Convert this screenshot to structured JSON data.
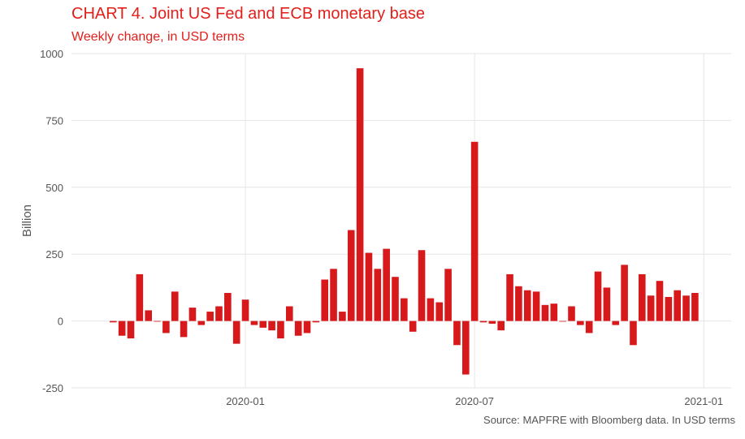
{
  "chart_data": {
    "type": "bar",
    "title": "CHART 4. Joint US Fed and ECB monetary base",
    "subtitle": "Weekly change, in USD terms",
    "ylabel": "Billion",
    "xlabel": "",
    "source": "Source: MAPFRE with Bloomberg data. In USD terms",
    "ylim": [
      -250,
      1000
    ],
    "y_ticks": [
      -250,
      0,
      250,
      500,
      750,
      1000
    ],
    "x_tick_labels": [
      "2020-01",
      "2020-07",
      "2021-01"
    ],
    "x_tick_bar_index": [
      15,
      41,
      67
    ],
    "values": [
      -5,
      -55,
      -65,
      175,
      40,
      0,
      -45,
      110,
      -60,
      50,
      -15,
      35,
      55,
      105,
      -85,
      80,
      -15,
      -25,
      -35,
      -65,
      55,
      -55,
      -45,
      -5,
      155,
      195,
      35,
      340,
      945,
      255,
      195,
      270,
      165,
      85,
      -40,
      265,
      85,
      70,
      195,
      -90,
      -200,
      670,
      -5,
      -10,
      -35,
      175,
      130,
      115,
      110,
      60,
      65,
      0,
      55,
      -15,
      -45,
      185,
      125,
      -15,
      210,
      -90,
      175,
      95,
      150,
      90,
      115,
      95,
      105
    ],
    "colors": {
      "bar": "#d7191c",
      "title": "#e0201b",
      "grid": "#e6e6e6",
      "axis_text": "#555555"
    }
  }
}
